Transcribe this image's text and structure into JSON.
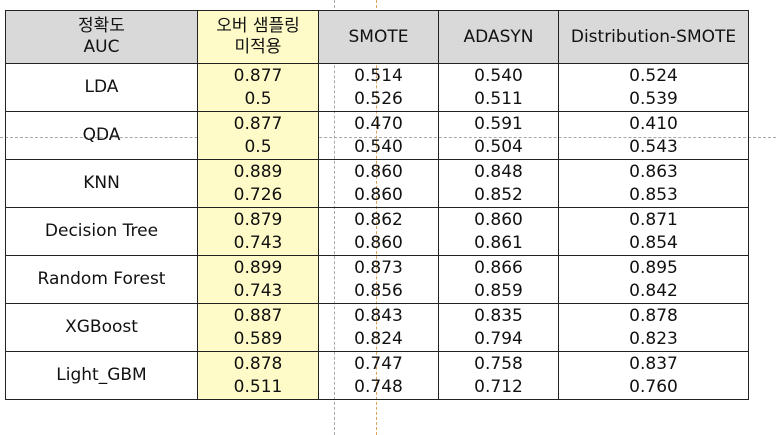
{
  "header": {
    "metric_line1": "정확도",
    "metric_line2": "AUC",
    "no_oversampling_line1": "오버 샘플링",
    "no_oversampling_line2": "미적용",
    "smote": "SMOTE",
    "adasyn": "ADASYN",
    "distribution_smote": "Distribution-SMOTE"
  },
  "rows": [
    {
      "model": "LDA",
      "no_os": [
        "0.877",
        "0.5"
      ],
      "smote": [
        "0.514",
        "0.526"
      ],
      "adasyn": [
        "0.540",
        "0.511"
      ],
      "distribution_smote": [
        "0.524",
        "0.539"
      ]
    },
    {
      "model": "QDA",
      "no_os": [
        "0.877",
        "0.5"
      ],
      "smote": [
        "0.470",
        "0.540"
      ],
      "adasyn": [
        "0.591",
        "0.504"
      ],
      "distribution_smote": [
        "0.410",
        "0.543"
      ]
    },
    {
      "model": "KNN",
      "no_os": [
        "0.889",
        "0.726"
      ],
      "smote": [
        "0.860",
        "0.860"
      ],
      "adasyn": [
        "0.848",
        "0.852"
      ],
      "distribution_smote": [
        "0.863",
        "0.853"
      ]
    },
    {
      "model": "Decision Tree",
      "no_os": [
        "0.879",
        "0.743"
      ],
      "smote": [
        "0.862",
        "0.860"
      ],
      "adasyn": [
        "0.860",
        "0.861"
      ],
      "distribution_smote": [
        "0.871",
        "0.854"
      ]
    },
    {
      "model": "Random Forest",
      "no_os": [
        "0.899",
        "0.743"
      ],
      "smote": [
        "0.873",
        "0.856"
      ],
      "adasyn": [
        "0.866",
        "0.859"
      ],
      "distribution_smote": [
        "0.895",
        "0.842"
      ]
    },
    {
      "model": "XGBoost",
      "no_os": [
        "0.887",
        "0.589"
      ],
      "smote": [
        "0.843",
        "0.824"
      ],
      "adasyn": [
        "0.835",
        "0.794"
      ],
      "distribution_smote": [
        "0.878",
        "0.823"
      ]
    },
    {
      "model": "Light_GBM",
      "no_os": [
        "0.878",
        "0.511"
      ],
      "smote": [
        "0.747",
        "0.748"
      ],
      "adasyn": [
        "0.758",
        "0.712"
      ],
      "distribution_smote": [
        "0.837",
        "0.760"
      ]
    }
  ],
  "colors": {
    "header_bg": "#d9d9d9",
    "highlight_bg": "#fffbc8",
    "border": "#222222"
  }
}
